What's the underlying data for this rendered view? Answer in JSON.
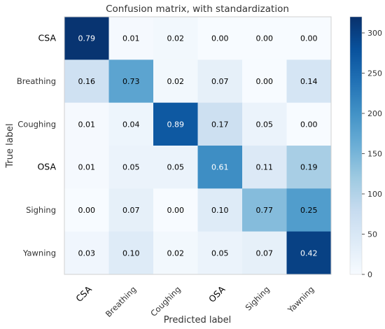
{
  "chart_data": {
    "type": "heatmap",
    "title": "Confusion matrix, with standardization",
    "xlabel": "Predicted label",
    "ylabel": "True label",
    "x_categories": [
      "CSA",
      "Breathing",
      "Coughing",
      "OSA",
      "Sighing",
      "Yawning"
    ],
    "y_categories": [
      "CSA",
      "Breathing",
      "Coughing",
      "OSA",
      "Sighing",
      "Yawning"
    ],
    "cell_labels": [
      [
        "0.79",
        "0.01",
        "0.02",
        "0.00",
        "0.00",
        "0.00"
      ],
      [
        "0.16",
        "0.73",
        "0.02",
        "0.07",
        "0.00",
        "0.14"
      ],
      [
        "0.01",
        "0.04",
        "0.89",
        "0.17",
        "0.05",
        "0.00"
      ],
      [
        "0.01",
        "0.05",
        "0.05",
        "0.61",
        "0.11",
        "0.19"
      ],
      [
        "0.00",
        "0.07",
        "0.00",
        "0.10",
        "0.77",
        "0.25"
      ],
      [
        "0.03",
        "0.10",
        "0.02",
        "0.05",
        "0.07",
        "0.42"
      ]
    ],
    "counts": [
      [
        315,
        4,
        8,
        0,
        0,
        0
      ],
      [
        65,
        175,
        8,
        28,
        0,
        55
      ],
      [
        4,
        16,
        270,
        68,
        20,
        0
      ],
      [
        4,
        20,
        20,
        205,
        44,
        110
      ],
      [
        0,
        28,
        0,
        40,
        140,
        185
      ],
      [
        12,
        40,
        8,
        20,
        28,
        300
      ]
    ],
    "colorbar": {
      "ticks": [
        "0",
        "50",
        "100",
        "150",
        "200",
        "250",
        "300"
      ],
      "min": 0,
      "max": 320
    },
    "colormap": "Blues",
    "colors": {
      "low": "#f7fbff",
      "high": "#08306b",
      "text_dark": "#000000",
      "text_light": "#ffffff"
    }
  }
}
